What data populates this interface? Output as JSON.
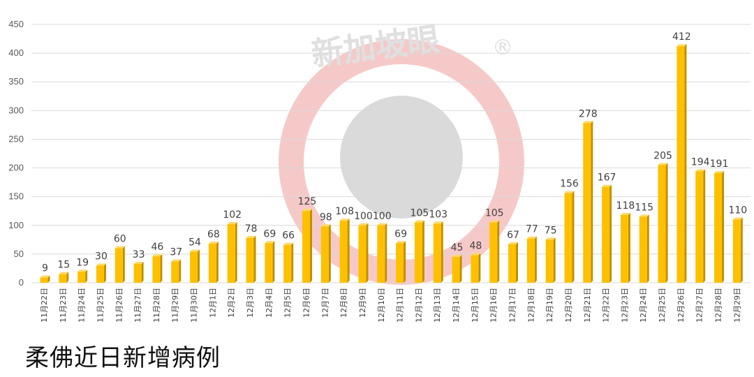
{
  "caption": "柔佛近日新增病例",
  "watermark": {
    "text": "新加坡眼",
    "mark": "®"
  },
  "colors": {
    "bar_front": "#FFC000",
    "bar_side": "#BF9000",
    "bar_top": "#FFD966",
    "grid": "#D9D9D9",
    "logo_ring": "#F6C9C9",
    "logo_center": "#DADADA"
  },
  "chart_data": {
    "type": "bar",
    "title": "",
    "xlabel": "",
    "ylabel": "",
    "ylim": [
      0,
      450
    ],
    "yticks": [
      0,
      50,
      100,
      150,
      200,
      250,
      300,
      350,
      400,
      450
    ],
    "grid": true,
    "categories": [
      "11月22日",
      "11月23日",
      "11月24日",
      "11月25日",
      "11月26日",
      "11月27日",
      "11月28日",
      "11月29日",
      "11月30日",
      "12月1日",
      "12月2日",
      "12月3日",
      "12月4日",
      "12月5日",
      "12月6日",
      "12月7日",
      "12月8日",
      "12月9日",
      "12月10日",
      "12月11日",
      "12月12日",
      "12月13日",
      "12月14日",
      "12月15日",
      "12月16日",
      "12月17日",
      "12月18日",
      "12月19日",
      "12月20日",
      "12月21日",
      "12月22日",
      "12月23日",
      "12月24日",
      "12月25日",
      "12月26日",
      "12月27日",
      "12月28日",
      "12月29日"
    ],
    "values": [
      9,
      15,
      19,
      30,
      60,
      33,
      46,
      37,
      54,
      68,
      102,
      78,
      69,
      66,
      125,
      98,
      108,
      100,
      100,
      69,
      105,
      103,
      45,
      48,
      105,
      67,
      77,
      75,
      156,
      278,
      167,
      118,
      115,
      205,
      412,
      194,
      191,
      110
    ]
  }
}
